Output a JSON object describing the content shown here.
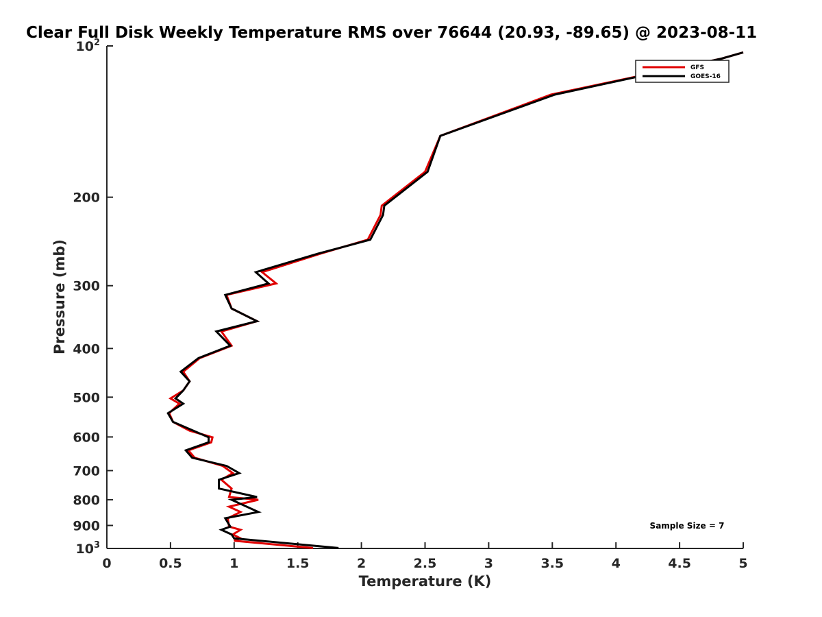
{
  "chart_data": {
    "type": "line",
    "title": "Clear Full Disk Weekly Temperature RMS over 76644 (20.93, -89.65) @ 2023-08-11",
    "xlabel": "Temperature (K)",
    "ylabel": "Pressure (mb)",
    "xlim": [
      0,
      5
    ],
    "ylim": [
      100,
      1000
    ],
    "yscale": "log",
    "y_reversed": true,
    "x_ticks": [
      0,
      0.5,
      1,
      1.5,
      2,
      2.5,
      3,
      3.5,
      4,
      4.5,
      5
    ],
    "x_tick_labels": [
      "0",
      "0.5",
      "1",
      "1.5",
      "2",
      "2.5",
      "3",
      "3.5",
      "4",
      "4.5",
      "5"
    ],
    "y_ticks": [
      100,
      200,
      300,
      400,
      500,
      600,
      700,
      800,
      900,
      1000
    ],
    "y_tick_labels": [
      {
        "base": "10",
        "exp": "2"
      },
      {
        "base": "200",
        "exp": ""
      },
      {
        "base": "300",
        "exp": ""
      },
      {
        "base": "400",
        "exp": ""
      },
      {
        "base": "500",
        "exp": ""
      },
      {
        "base": "600",
        "exp": ""
      },
      {
        "base": "700",
        "exp": ""
      },
      {
        "base": "800",
        "exp": ""
      },
      {
        "base": "900",
        "exp": ""
      },
      {
        "base": "10",
        "exp": "3"
      }
    ],
    "grid": false,
    "legend_position": "top-right",
    "annotation": "Sample Size = 7",
    "series": [
      {
        "name": "GFS",
        "color": "#e00000",
        "points": [
          [
            5.0,
            103
          ],
          [
            4.83,
            106
          ],
          [
            3.49,
            125
          ],
          [
            2.62,
            151
          ],
          [
            2.5,
            178
          ],
          [
            2.16,
            208
          ],
          [
            2.15,
            217
          ],
          [
            2.05,
            243
          ],
          [
            1.68,
            259
          ],
          [
            1.22,
            282
          ],
          [
            1.33,
            297
          ],
          [
            0.94,
            313
          ],
          [
            0.98,
            333
          ],
          [
            1.18,
            353
          ],
          [
            0.9,
            370
          ],
          [
            0.98,
            395
          ],
          [
            0.73,
            418
          ],
          [
            0.6,
            445
          ],
          [
            0.65,
            465
          ],
          [
            0.6,
            485
          ],
          [
            0.5,
            503
          ],
          [
            0.57,
            515
          ],
          [
            0.49,
            538
          ],
          [
            0.52,
            560
          ],
          [
            0.65,
            583
          ],
          [
            0.83,
            601
          ],
          [
            0.82,
            615
          ],
          [
            0.64,
            638
          ],
          [
            0.69,
            660
          ],
          [
            0.91,
            685
          ],
          [
            0.99,
            708
          ],
          [
            0.9,
            730
          ],
          [
            0.98,
            760
          ],
          [
            0.96,
            790
          ],
          [
            1.19,
            800
          ],
          [
            0.96,
            826
          ],
          [
            1.05,
            846
          ],
          [
            0.95,
            871
          ],
          [
            0.96,
            905
          ],
          [
            1.05,
            918
          ],
          [
            0.99,
            938
          ],
          [
            1.05,
            955
          ],
          [
            1.0,
            965
          ],
          [
            1.62,
            998
          ]
        ]
      },
      {
        "name": "GOES-16",
        "color": "#000000",
        "points": [
          [
            5.0,
            103
          ],
          [
            4.83,
            106
          ],
          [
            3.52,
            125
          ],
          [
            2.62,
            151
          ],
          [
            2.52,
            178
          ],
          [
            2.18,
            208
          ],
          [
            2.17,
            217
          ],
          [
            2.07,
            243
          ],
          [
            1.66,
            259
          ],
          [
            1.17,
            282
          ],
          [
            1.27,
            297
          ],
          [
            0.93,
            313
          ],
          [
            0.98,
            333
          ],
          [
            1.18,
            353
          ],
          [
            0.86,
            370
          ],
          [
            0.97,
            395
          ],
          [
            0.72,
            418
          ],
          [
            0.58,
            445
          ],
          [
            0.65,
            465
          ],
          [
            0.6,
            485
          ],
          [
            0.54,
            503
          ],
          [
            0.6,
            515
          ],
          [
            0.48,
            538
          ],
          [
            0.52,
            560
          ],
          [
            0.68,
            583
          ],
          [
            0.8,
            601
          ],
          [
            0.8,
            615
          ],
          [
            0.62,
            638
          ],
          [
            0.67,
            660
          ],
          [
            0.94,
            685
          ],
          [
            1.04,
            708
          ],
          [
            0.88,
            730
          ],
          [
            0.88,
            760
          ],
          [
            1.18,
            790
          ],
          [
            0.98,
            800
          ],
          [
            1.19,
            846
          ],
          [
            0.93,
            871
          ],
          [
            0.97,
            905
          ],
          [
            0.9,
            918
          ],
          [
            0.98,
            938
          ],
          [
            1.0,
            955
          ],
          [
            1.82,
            998
          ]
        ]
      }
    ]
  }
}
